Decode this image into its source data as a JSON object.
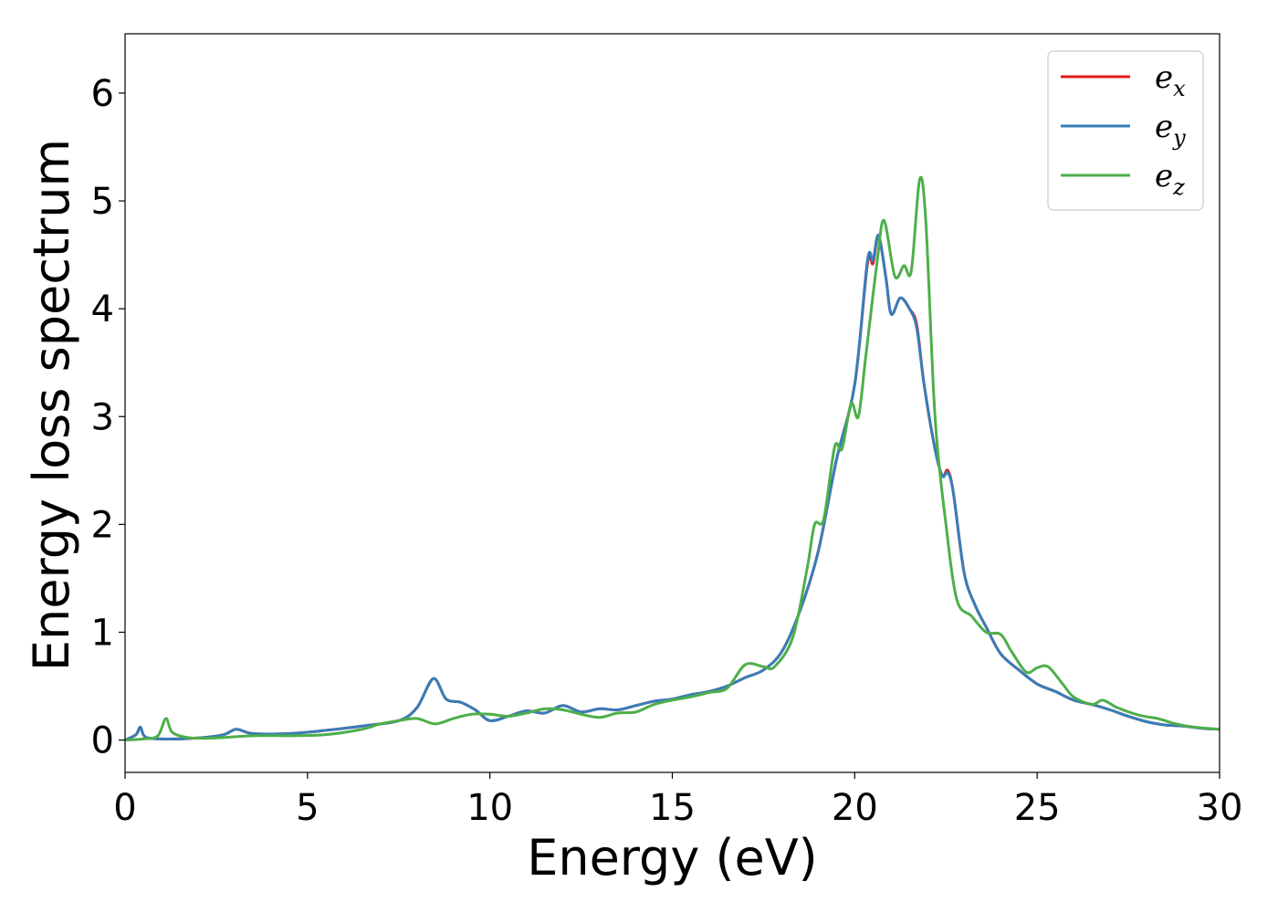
{
  "chart_data": {
    "type": "line",
    "xlabel": "Energy (eV)",
    "ylabel": "Energy loss spectrum",
    "xlim": [
      0,
      30
    ],
    "ylim": [
      -0.3,
      6.55
    ],
    "xticks": [
      0,
      5,
      10,
      15,
      20,
      25,
      30
    ],
    "yticks": [
      0,
      1,
      2,
      3,
      4,
      5,
      6
    ],
    "grid": false,
    "legend_position": "top-right",
    "series": [
      {
        "name": "e_x",
        "label_base": "e",
        "label_sub": "x",
        "color": "#e41a1c",
        "points": [
          [
            0,
            0
          ],
          [
            0.3,
            0.05
          ],
          [
            0.42,
            0.12
          ],
          [
            0.55,
            0.03
          ],
          [
            1.0,
            0.01
          ],
          [
            2.0,
            0.02
          ],
          [
            2.7,
            0.05
          ],
          [
            3.05,
            0.1
          ],
          [
            3.5,
            0.06
          ],
          [
            4.5,
            0.06
          ],
          [
            5.5,
            0.09
          ],
          [
            6.5,
            0.13
          ],
          [
            7.5,
            0.18
          ],
          [
            8.0,
            0.3
          ],
          [
            8.45,
            0.57
          ],
          [
            8.8,
            0.38
          ],
          [
            9.2,
            0.35
          ],
          [
            9.6,
            0.28
          ],
          [
            10.0,
            0.18
          ],
          [
            10.5,
            0.22
          ],
          [
            11.0,
            0.27
          ],
          [
            11.5,
            0.25
          ],
          [
            12.0,
            0.32
          ],
          [
            12.5,
            0.26
          ],
          [
            13.0,
            0.29
          ],
          [
            13.5,
            0.28
          ],
          [
            14.0,
            0.32
          ],
          [
            14.5,
            0.36
          ],
          [
            15.0,
            0.38
          ],
          [
            15.5,
            0.42
          ],
          [
            16.0,
            0.45
          ],
          [
            16.5,
            0.5
          ],
          [
            17.0,
            0.58
          ],
          [
            17.5,
            0.65
          ],
          [
            18.0,
            0.82
          ],
          [
            18.5,
            1.2
          ],
          [
            19.0,
            1.75
          ],
          [
            19.5,
            2.6
          ],
          [
            20.0,
            3.3
          ],
          [
            20.35,
            4.42
          ],
          [
            20.5,
            4.42
          ],
          [
            20.65,
            4.68
          ],
          [
            20.85,
            4.3
          ],
          [
            21.0,
            3.95
          ],
          [
            21.25,
            4.1
          ],
          [
            21.5,
            4.0
          ],
          [
            21.7,
            3.85
          ],
          [
            21.9,
            3.3
          ],
          [
            22.2,
            2.7
          ],
          [
            22.4,
            2.45
          ],
          [
            22.55,
            2.5
          ],
          [
            22.7,
            2.3
          ],
          [
            23.0,
            1.55
          ],
          [
            23.3,
            1.25
          ],
          [
            23.6,
            1.05
          ],
          [
            24.0,
            0.8
          ],
          [
            24.5,
            0.65
          ],
          [
            25.0,
            0.52
          ],
          [
            25.5,
            0.45
          ],
          [
            26.0,
            0.37
          ],
          [
            26.5,
            0.33
          ],
          [
            27.0,
            0.28
          ],
          [
            27.5,
            0.22
          ],
          [
            28.0,
            0.17
          ],
          [
            28.5,
            0.14
          ],
          [
            29.0,
            0.13
          ],
          [
            29.5,
            0.11
          ],
          [
            30,
            0.1
          ]
        ]
      },
      {
        "name": "e_y",
        "label_base": "e",
        "label_sub": "y",
        "color": "#377eb8",
        "points": [
          [
            0,
            0
          ],
          [
            0.3,
            0.05
          ],
          [
            0.42,
            0.12
          ],
          [
            0.55,
            0.03
          ],
          [
            1.0,
            0.01
          ],
          [
            2.0,
            0.02
          ],
          [
            2.7,
            0.05
          ],
          [
            3.05,
            0.1
          ],
          [
            3.5,
            0.06
          ],
          [
            4.5,
            0.06
          ],
          [
            5.5,
            0.09
          ],
          [
            6.5,
            0.13
          ],
          [
            7.5,
            0.18
          ],
          [
            8.0,
            0.3
          ],
          [
            8.45,
            0.57
          ],
          [
            8.8,
            0.38
          ],
          [
            9.2,
            0.35
          ],
          [
            9.6,
            0.28
          ],
          [
            10.0,
            0.18
          ],
          [
            10.5,
            0.22
          ],
          [
            11.0,
            0.27
          ],
          [
            11.5,
            0.25
          ],
          [
            12.0,
            0.32
          ],
          [
            12.5,
            0.26
          ],
          [
            13.0,
            0.29
          ],
          [
            13.5,
            0.28
          ],
          [
            14.0,
            0.32
          ],
          [
            14.5,
            0.36
          ],
          [
            15.0,
            0.38
          ],
          [
            15.5,
            0.42
          ],
          [
            16.0,
            0.45
          ],
          [
            16.5,
            0.5
          ],
          [
            17.0,
            0.58
          ],
          [
            17.5,
            0.65
          ],
          [
            18.0,
            0.82
          ],
          [
            18.5,
            1.2
          ],
          [
            19.0,
            1.75
          ],
          [
            19.5,
            2.6
          ],
          [
            20.0,
            3.3
          ],
          [
            20.35,
            4.45
          ],
          [
            20.5,
            4.45
          ],
          [
            20.65,
            4.68
          ],
          [
            20.85,
            4.3
          ],
          [
            21.0,
            3.95
          ],
          [
            21.25,
            4.1
          ],
          [
            21.5,
            4.0
          ],
          [
            21.7,
            3.82
          ],
          [
            21.9,
            3.3
          ],
          [
            22.2,
            2.7
          ],
          [
            22.4,
            2.45
          ],
          [
            22.55,
            2.48
          ],
          [
            22.7,
            2.3
          ],
          [
            23.0,
            1.55
          ],
          [
            23.3,
            1.25
          ],
          [
            23.6,
            1.05
          ],
          [
            24.0,
            0.8
          ],
          [
            24.5,
            0.65
          ],
          [
            25.0,
            0.52
          ],
          [
            25.5,
            0.45
          ],
          [
            26.0,
            0.37
          ],
          [
            26.5,
            0.33
          ],
          [
            27.0,
            0.28
          ],
          [
            27.5,
            0.22
          ],
          [
            28.0,
            0.17
          ],
          [
            28.5,
            0.14
          ],
          [
            29.0,
            0.13
          ],
          [
            29.5,
            0.11
          ],
          [
            30,
            0.1
          ]
        ]
      },
      {
        "name": "e_z",
        "label_base": "e",
        "label_sub": "z",
        "color": "#4daf4a",
        "points": [
          [
            0,
            0
          ],
          [
            0.5,
            0.01
          ],
          [
            0.9,
            0.04
          ],
          [
            1.12,
            0.2
          ],
          [
            1.3,
            0.07
          ],
          [
            1.8,
            0.02
          ],
          [
            2.5,
            0.02
          ],
          [
            3.5,
            0.04
          ],
          [
            4.5,
            0.04
          ],
          [
            5.5,
            0.05
          ],
          [
            6.5,
            0.1
          ],
          [
            7.0,
            0.15
          ],
          [
            7.5,
            0.18
          ],
          [
            8.0,
            0.2
          ],
          [
            8.5,
            0.15
          ],
          [
            9.0,
            0.2
          ],
          [
            9.5,
            0.24
          ],
          [
            10.0,
            0.24
          ],
          [
            10.5,
            0.22
          ],
          [
            11.0,
            0.25
          ],
          [
            11.5,
            0.29
          ],
          [
            12.0,
            0.28
          ],
          [
            12.5,
            0.24
          ],
          [
            13.0,
            0.21
          ],
          [
            13.5,
            0.25
          ],
          [
            14.0,
            0.26
          ],
          [
            14.5,
            0.33
          ],
          [
            15.0,
            0.37
          ],
          [
            15.5,
            0.4
          ],
          [
            16.0,
            0.44
          ],
          [
            16.5,
            0.48
          ],
          [
            17.0,
            0.7
          ],
          [
            17.5,
            0.68
          ],
          [
            17.8,
            0.68
          ],
          [
            18.3,
            0.95
          ],
          [
            18.7,
            1.6
          ],
          [
            18.9,
            2.0
          ],
          [
            19.15,
            2.05
          ],
          [
            19.45,
            2.72
          ],
          [
            19.65,
            2.7
          ],
          [
            19.9,
            3.12
          ],
          [
            20.1,
            3.0
          ],
          [
            20.3,
            3.55
          ],
          [
            20.6,
            4.4
          ],
          [
            20.8,
            4.82
          ],
          [
            21.1,
            4.3
          ],
          [
            21.35,
            4.4
          ],
          [
            21.55,
            4.35
          ],
          [
            21.78,
            5.2
          ],
          [
            21.95,
            4.8
          ],
          [
            22.2,
            3.0
          ],
          [
            22.5,
            2.0
          ],
          [
            22.8,
            1.3
          ],
          [
            23.2,
            1.15
          ],
          [
            23.6,
            1.0
          ],
          [
            24.0,
            0.98
          ],
          [
            24.3,
            0.82
          ],
          [
            24.7,
            0.63
          ],
          [
            25.0,
            0.67
          ],
          [
            25.3,
            0.68
          ],
          [
            25.7,
            0.52
          ],
          [
            26.0,
            0.4
          ],
          [
            26.5,
            0.33
          ],
          [
            26.8,
            0.37
          ],
          [
            27.2,
            0.3
          ],
          [
            27.8,
            0.23
          ],
          [
            28.3,
            0.2
          ],
          [
            28.8,
            0.15
          ],
          [
            29.3,
            0.12
          ],
          [
            30,
            0.1
          ]
        ]
      }
    ]
  }
}
